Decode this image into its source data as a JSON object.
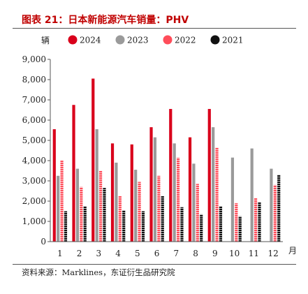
{
  "title": "图表 21：日本新能源汽车销量：PHV",
  "source": "资料来源：Marklines，东证衍生品研究院",
  "colors": {
    "title": "#c00000"
  },
  "chart_data": {
    "type": "bar",
    "ylabel": "辆",
    "xlabel": "月",
    "categories": [
      "1",
      "2",
      "3",
      "4",
      "5",
      "6",
      "7",
      "8",
      "9",
      "10",
      "11",
      "12"
    ],
    "ylim": [
      0,
      9000
    ],
    "yticks": [
      0,
      1000,
      2000,
      3000,
      4000,
      5000,
      6000,
      7000,
      8000,
      9000
    ],
    "ytick_labels": [
      "0",
      "1,000",
      "2,000",
      "3,000",
      "4,000",
      "5,000",
      "6,000",
      "7,000",
      "8,000",
      "9,000"
    ],
    "legend_position": "top",
    "series": [
      {
        "name": "2024",
        "color": "#d9001b",
        "pattern": "solid",
        "values": [
          5550,
          6750,
          8050,
          4850,
          4800,
          5650,
          6550,
          5150,
          6550,
          null,
          null,
          null
        ]
      },
      {
        "name": "2023",
        "color": "#9a9a9a",
        "pattern": "solid",
        "values": [
          3250,
          3600,
          5550,
          3900,
          3550,
          5150,
          4850,
          3850,
          5650,
          4150,
          4600,
          3600
        ]
      },
      {
        "name": "2022",
        "color": "#ff4d5a",
        "pattern": "striped",
        "values": [
          4000,
          2700,
          3500,
          2250,
          2950,
          3250,
          4150,
          2850,
          4650,
          1900,
          2150,
          2800
        ]
      },
      {
        "name": "2021",
        "color": "#111111",
        "pattern": "striped",
        "values": [
          1500,
          1750,
          2650,
          1550,
          1500,
          2250,
          1700,
          1350,
          1750,
          1250,
          1950,
          3300
        ]
      }
    ]
  }
}
